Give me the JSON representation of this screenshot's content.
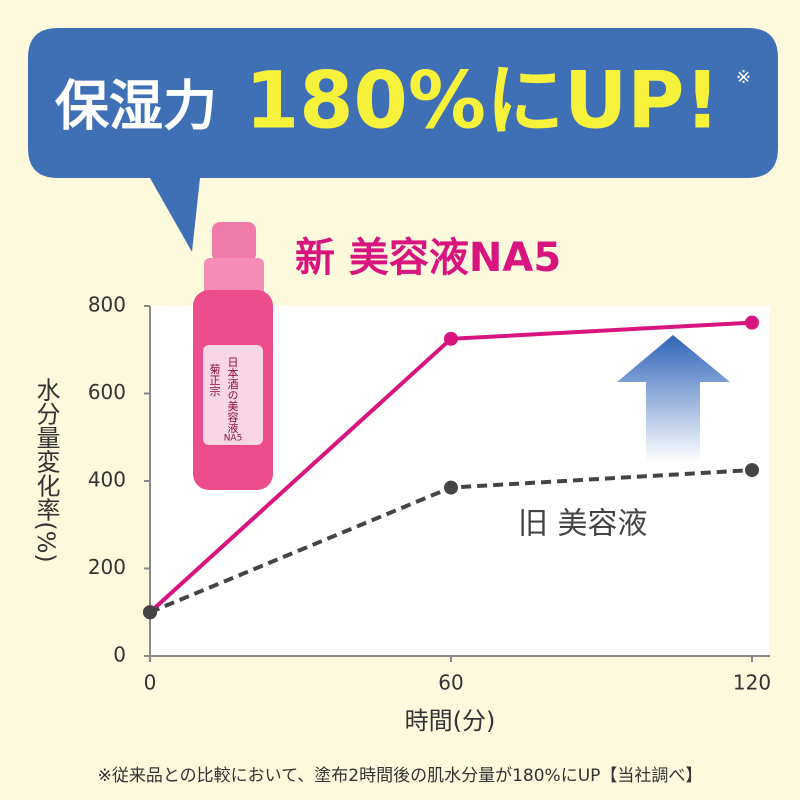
{
  "banner": {
    "lead": "保湿力",
    "claim": "180%にUP!",
    "mark": "※"
  },
  "bottle": {
    "label": "日本酒の美容液",
    "brand": "菊正宗",
    "model": "NA5"
  },
  "footnote": "※従来品との比較において、塗布2時間後の肌水分量が180%にUP【当社調べ】",
  "chart_data": {
    "type": "line",
    "x": [
      0,
      60,
      120
    ],
    "xlim": [
      0,
      120
    ],
    "xticks": [
      0,
      60,
      120
    ],
    "ylim": [
      0,
      800
    ],
    "yticks": [
      0,
      200,
      400,
      600,
      800
    ],
    "xlabel": "時間(分)",
    "ylabel": "水分量変化率(%)",
    "series": [
      {
        "name": "新 美容液NA5",
        "color": "#d8147e",
        "linestyle": "solid",
        "values": [
          100,
          725,
          762
        ]
      },
      {
        "name": "旧 美容液",
        "color": "#444444",
        "linestyle": "dashed",
        "values": [
          100,
          385,
          425
        ]
      }
    ]
  }
}
